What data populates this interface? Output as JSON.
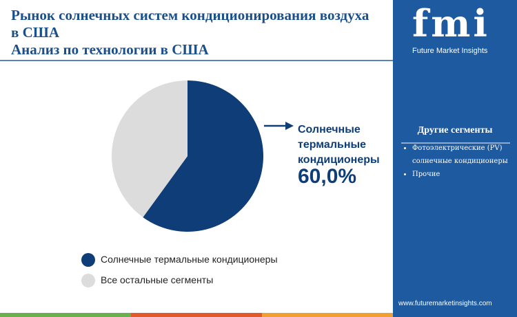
{
  "chart_data": {
    "type": "pie",
    "title": "Рынок солнечных систем кондиционирования воздуха в США",
    "subtitle": "Анализ по технологии в США",
    "categories": [
      "Солнечные термальные кондиционеры",
      "Все остальные сегменты"
    ],
    "values": [
      60,
      40
    ],
    "value_labels": [
      "60,0%",
      null
    ],
    "colors": [
      "#0e3d78",
      "#dcdcdc"
    ],
    "legend": "bottom"
  },
  "side_panel": {
    "logo": "fmi",
    "brand": "Future Market Insights",
    "heading": "Другие сегменты",
    "items": [
      "Фотоэлектрические (PV) солнечные кондиционеры",
      "Прочие"
    ],
    "website": "www.futuremarketinsights.com"
  }
}
